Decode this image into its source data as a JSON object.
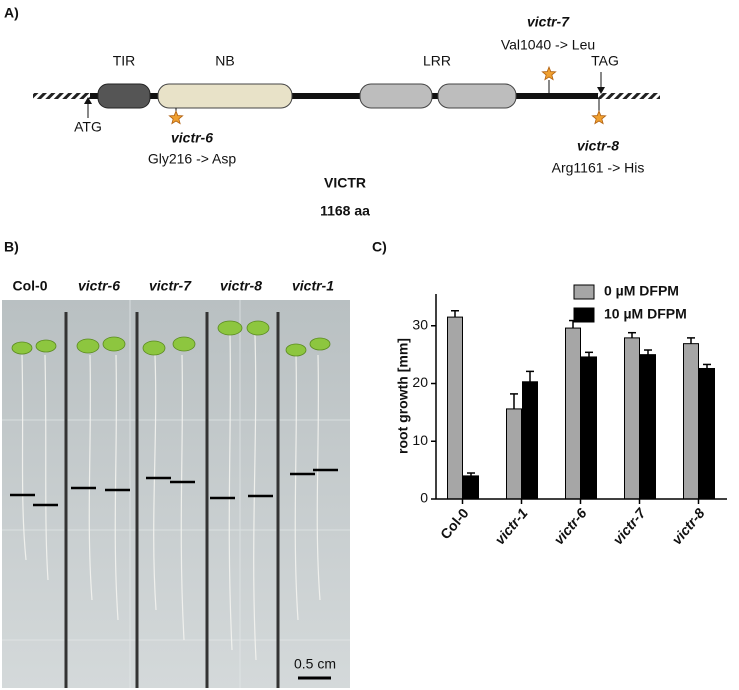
{
  "panel_a": {
    "label": "A)",
    "domains": [
      "TIR",
      "NB",
      "LRR"
    ],
    "start_codon": "ATG",
    "stop_codon": "TAG",
    "mutations": [
      {
        "name": "victr-6",
        "change": "Gly216 -> Asp"
      },
      {
        "name": "victr-7",
        "change": "Val1040 -> Leu"
      },
      {
        "name": "victr-8",
        "change": "Arg1161 -> His"
      }
    ],
    "protein": "VICTR",
    "length": "1168 aa"
  },
  "panel_b": {
    "label": "B)",
    "lines": [
      "Col-0",
      "victr-6",
      "victr-7",
      "victr-8",
      "victr-1"
    ],
    "scale_bar": "0.5 cm"
  },
  "panel_c": {
    "label": "C)"
  },
  "chart_data": {
    "type": "bar",
    "y_label": "root growth [mm]",
    "categories": [
      "Col-0",
      "victr-1",
      "victr-6",
      "victr-7",
      "victr-8"
    ],
    "series": [
      {
        "name": "0 µM DFPM",
        "color": "#a6a6a6",
        "values": [
          31.5,
          15.6,
          29.6,
          27.9,
          26.9
        ],
        "errors": [
          1.1,
          2.6,
          1.3,
          0.9,
          1.0
        ]
      },
      {
        "name": "10 µM DFPM",
        "color": "#000000",
        "values": [
          4.0,
          20.3,
          24.6,
          25.0,
          22.6
        ],
        "errors": [
          0.5,
          1.8,
          0.8,
          0.8,
          0.7
        ]
      }
    ],
    "ylim": [
      0,
      35.5
    ],
    "yticks": [
      0,
      10,
      20,
      30
    ],
    "legend": "top-right"
  }
}
